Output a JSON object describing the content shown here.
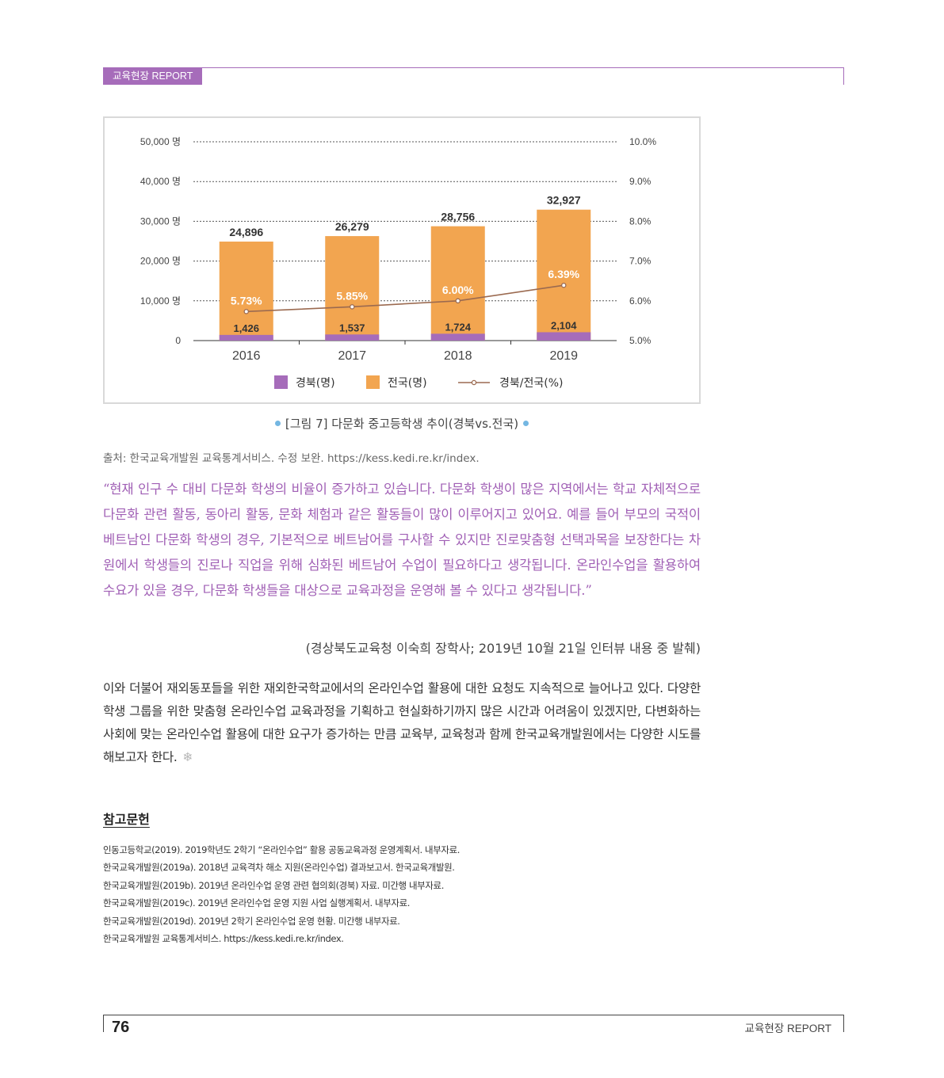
{
  "header": {
    "tab_label": "교육현장 REPORT"
  },
  "chart_data": {
    "type": "bar",
    "categories": [
      "2016",
      "2017",
      "2018",
      "2019"
    ],
    "series": [
      {
        "name": "경북(명)",
        "values": [
          1426,
          1537,
          1724,
          2104
        ],
        "value_labels": [
          "1,426",
          "1,537",
          "1,724",
          "2,104"
        ],
        "color": "#a66cba"
      },
      {
        "name": "전국(명)",
        "values": [
          24896,
          26279,
          28756,
          32927
        ],
        "value_labels": [
          "24,896",
          "26,279",
          "28,756",
          "32,927"
        ],
        "color": "#f2a550"
      },
      {
        "name": "경북/전국(%)",
        "type": "line",
        "axis": "right",
        "values": [
          5.73,
          5.85,
          6.0,
          6.39
        ],
        "value_labels": [
          "5.73%",
          "5.85%",
          "6.00%",
          "6.39%"
        ],
        "color": "#9b6a50"
      }
    ],
    "left_axis": {
      "ylim": [
        0,
        50000
      ],
      "tick_labels": [
        "0",
        "10,000 명",
        "20,000 명",
        "30,000 명",
        "40,000 명",
        "50,000 명"
      ]
    },
    "right_axis": {
      "ylim": [
        5.0,
        10.0
      ],
      "tick_labels": [
        "5.0%",
        "6.0%",
        "7.0%",
        "8.0%",
        "9.0%",
        "10.0%"
      ]
    },
    "grid": true,
    "legend_position": "bottom"
  },
  "caption": {
    "text": "[그림 7] 다문화 중고등학생 추이(경북vs.전국)"
  },
  "source": "출처: 한국교육개발원 교육통계서비스. 수정 보완. https://kess.kedi.re.kr/index.",
  "quote": "“현재 인구 수 대비 다문화 학생의 비율이 증가하고 있습니다. 다문화 학생이 많은 지역에서는 학교 자체적으로 다문화 관련 활동, 동아리 활동, 문화 체험과 같은 활동들이 많이 이루어지고 있어요. 예를 들어 부모의 국적이 베트남인 다문화 학생의 경우, 기본적으로 베트남어를 구사할 수 있지만 진로맞춤형 선택과목을 보장한다는 차원에서 학생들의 진로나 직업을 위해 심화된 베트남어 수업이 필요하다고 생각됩니다. 온라인수업을 활용하여 수요가 있을 경우, 다문화 학생들을 대상으로 교육과정을 운영해 볼 수 있다고 생각됩니다.”",
  "attribution": "(경상북도교육청 이숙희 장학사; 2019년 10월 21일 인터뷰 내용 중 발췌)",
  "body": "이와 더불어 재외동포들을 위한 재외한국학교에서의 온라인수업 활용에 대한 요청도 지속적으로 늘어나고 있다. 다양한 학생 그룹을 위한 맞춤형 온라인수업 교육과정을 기획하고 현실화하기까지 많은 시간과 어려움이 있겠지만, 다변화하는 사회에 맞는 온라인수업 활용에 대한 요구가 증가하는 만큼 교육부, 교육청과 함께 한국교육개발원에서는 다양한 시도를 해보고자 한다.",
  "body_end_icon": "snowflake-icon",
  "references": {
    "title": "참고문헌",
    "items": [
      "인동고등학교(2019). 2019학년도 2학기 “온라인수업” 활용 공동교육과정 운영계획서. 내부자료.",
      "한국교육개발원(2019a). 2018년 교육격차 해소 지원(온라인수업) 결과보고서. 한국교육개발원.",
      "한국교육개발원(2019b). 2019년 온라인수업 운영 관련 협의회(경북) 자료. 미간행 내부자료.",
      "한국교육개발원(2019c). 2019년 온라인수업 운영 지원 사업 실행계획서. 내부자료.",
      "한국교육개발원(2019d). 2019년 2학기 온라인수업 운영 현황. 미간행 내부자료.",
      "한국교육개발원 교육통계서비스. https://kess.kedi.re.kr/index."
    ]
  },
  "footer": {
    "page_number": "76",
    "label": "교육현장 REPORT"
  }
}
